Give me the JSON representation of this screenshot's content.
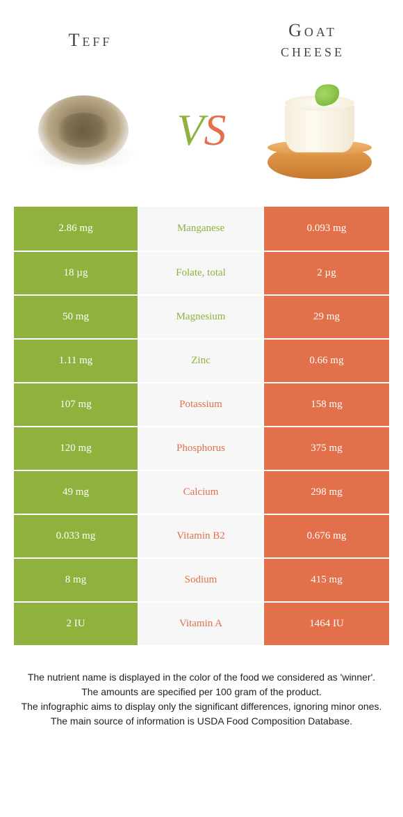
{
  "colors": {
    "left_food": "#8fb23e",
    "right_food": "#e2704b",
    "mid_bg": "#f7f7f7",
    "cell_text": "#ffffff"
  },
  "header": {
    "left_title": "Teff",
    "right_title_line1": "Goat",
    "right_title_line2": "cheese"
  },
  "vs": {
    "v": "V",
    "s": "S"
  },
  "rows": [
    {
      "nutrient": "Manganese",
      "left": "2.86 mg",
      "right": "0.093 mg",
      "winner": "left"
    },
    {
      "nutrient": "Folate, total",
      "left": "18 µg",
      "right": "2 µg",
      "winner": "left"
    },
    {
      "nutrient": "Magnesium",
      "left": "50 mg",
      "right": "29 mg",
      "winner": "left"
    },
    {
      "nutrient": "Zinc",
      "left": "1.11 mg",
      "right": "0.66 mg",
      "winner": "left"
    },
    {
      "nutrient": "Potassium",
      "left": "107 mg",
      "right": "158 mg",
      "winner": "right"
    },
    {
      "nutrient": "Phosphorus",
      "left": "120 mg",
      "right": "375 mg",
      "winner": "right"
    },
    {
      "nutrient": "Calcium",
      "left": "49 mg",
      "right": "298 mg",
      "winner": "right"
    },
    {
      "nutrient": "Vitamin B2",
      "left": "0.033 mg",
      "right": "0.676 mg",
      "winner": "right"
    },
    {
      "nutrient": "Sodium",
      "left": "8 mg",
      "right": "415 mg",
      "winner": "right"
    },
    {
      "nutrient": "Vitamin A",
      "left": "2 IU",
      "right": "1464 IU",
      "winner": "right"
    }
  ],
  "footnote": {
    "l1": "The nutrient name is displayed in the color of the food we considered as 'winner'.",
    "l2": "The amounts are specified per 100 gram of the product.",
    "l3": "The infographic aims to display only the significant differences, ignoring minor ones.",
    "l4": "The main source of information is USDA Food Composition Database."
  }
}
